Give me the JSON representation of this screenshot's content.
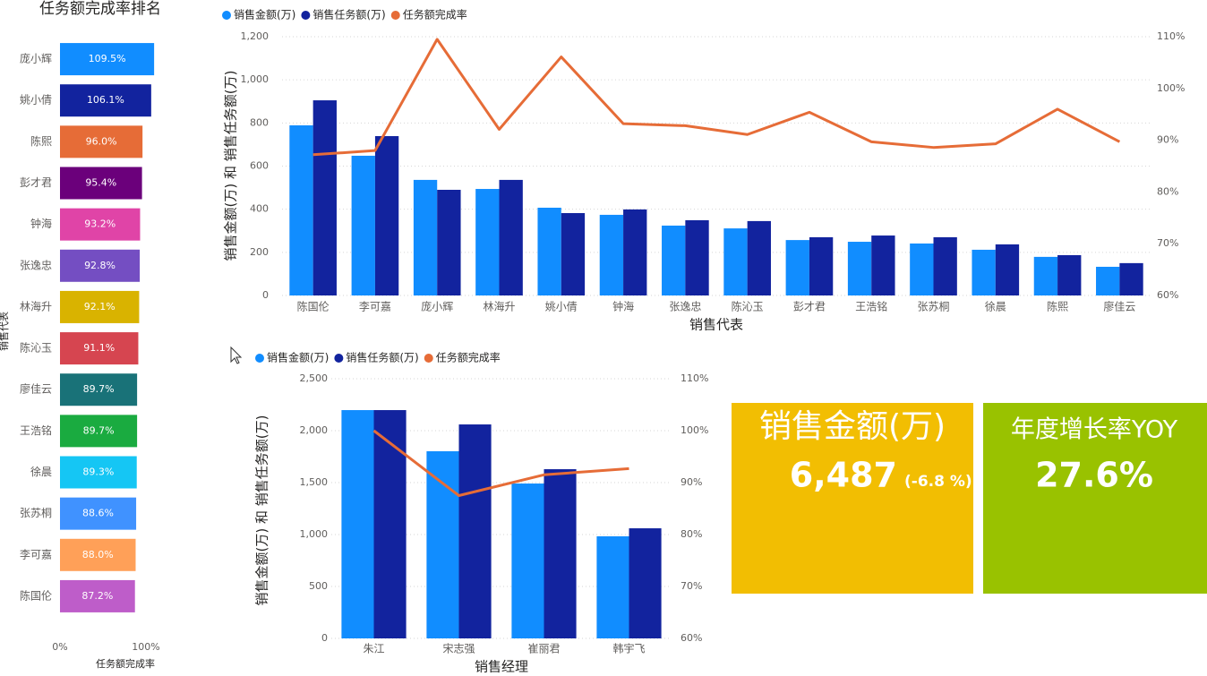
{
  "chart_data": [
    {
      "type": "hbar",
      "title": "任务额完成率排名",
      "categories": [
        "庞小辉",
        "姚小倩",
        "陈熙",
        "彭才君",
        "钟海",
        "张逸忠",
        "林海升",
        "陈沁玉",
        "廖佳云",
        "王浩铭",
        "徐晨",
        "张苏桐",
        "李可嘉",
        "陈国伦"
      ],
      "values": [
        109.5,
        106.1,
        96.0,
        95.4,
        93.2,
        92.8,
        92.1,
        91.1,
        89.7,
        89.7,
        89.3,
        88.6,
        88.0,
        87.2
      ],
      "value_labels": [
        "109.5%",
        "106.1%",
        "96.0%",
        "95.4%",
        "93.2%",
        "92.8%",
        "92.1%",
        "91.1%",
        "89.7%",
        "89.7%",
        "89.3%",
        "88.6%",
        "88.0%",
        "87.2%"
      ],
      "colors": [
        "#118DFF",
        "#12239E",
        "#E66C37",
        "#6B007B",
        "#E044A7",
        "#744EC2",
        "#D9B300",
        "#D64550",
        "#197278",
        "#1AAB40",
        "#15C6F4",
        "#4092FF",
        "#FFA058",
        "#BE5DC9"
      ],
      "xlim": [
        0,
        110
      ],
      "xticks": [
        {
          "value": 0,
          "label": "0%"
        },
        {
          "value": 100,
          "label": "100%"
        }
      ],
      "x_label": "任务额完成率",
      "y_label": "销售代表"
    },
    {
      "type": "combo",
      "categories": [
        "陈国伦",
        "李可嘉",
        "庞小辉",
        "林海升",
        "姚小倩",
        "钟海",
        "张逸忠",
        "陈沁玉",
        "彭才君",
        "王浩铭",
        "张苏桐",
        "徐晨",
        "陈熙",
        "廖佳云"
      ],
      "series": [
        {
          "name": "销售金额(万)",
          "color": "#118DFF",
          "values": [
            789,
            648,
            536,
            494,
            407,
            374,
            324,
            311,
            257,
            249,
            241,
            212,
            179,
            133
          ]
        },
        {
          "name": "销售任务额(万)",
          "color": "#12239E",
          "values": [
            905,
            739,
            490,
            536,
            382,
            399,
            349,
            345,
            270,
            278,
            270,
            237,
            187,
            150
          ]
        },
        {
          "name": "任务额完成率",
          "color": "#E66C37",
          "axis": "y2",
          "values": [
            87.2,
            88.0,
            109.5,
            92.1,
            106.1,
            93.2,
            92.8,
            91.1,
            95.4,
            89.7,
            88.6,
            89.3,
            96.0,
            89.7
          ]
        }
      ],
      "ylim": [
        0,
        1200
      ],
      "yticks": [
        0,
        200,
        400,
        600,
        800,
        {
          "value": 1000,
          "label": "1,000"
        },
        {
          "value": 1200,
          "label": "1,200"
        }
      ],
      "y2lim": [
        60,
        110
      ],
      "y2ticks": [
        {
          "value": 60,
          "label": "60%"
        },
        {
          "value": 70,
          "label": "70%"
        },
        {
          "value": 80,
          "label": "80%"
        },
        {
          "value": 90,
          "label": "90%"
        },
        {
          "value": 100,
          "label": "100%"
        },
        {
          "value": 110,
          "label": "110%"
        }
      ],
      "x_label": "销售代表",
      "y_label": "销售金额(万) 和 销售任务额(万)",
      "grid": true
    },
    {
      "type": "combo",
      "categories": [
        "朱江",
        "宋志强",
        "崔丽君",
        "韩宇飞"
      ],
      "series": [
        {
          "name": "销售金额(万)",
          "color": "#118DFF",
          "values": [
            2198,
            1802,
            1491,
            983
          ]
        },
        {
          "name": "销售任务额(万)",
          "color": "#12239E",
          "values": [
            2198,
            2060,
            1629,
            1060
          ]
        },
        {
          "name": "任务额完成率",
          "color": "#E66C37",
          "axis": "y2",
          "values": [
            100,
            87.5,
            91.5,
            92.7
          ]
        }
      ],
      "ylim": [
        0,
        2500
      ],
      "yticks": [
        0,
        500,
        {
          "value": 1000,
          "label": "1,000"
        },
        {
          "value": 1500,
          "label": "1,500"
        },
        {
          "value": 2000,
          "label": "2,000"
        },
        {
          "value": 2500,
          "label": "2,500"
        }
      ],
      "y2lim": [
        60,
        110
      ],
      "y2ticks": [
        {
          "value": 60,
          "label": "60%"
        },
        {
          "value": 70,
          "label": "70%"
        },
        {
          "value": 80,
          "label": "80%"
        },
        {
          "value": 90,
          "label": "90%"
        },
        {
          "value": 100,
          "label": "100%"
        },
        {
          "value": 110,
          "label": "110%"
        }
      ],
      "x_label": "销售经理",
      "y_label": "销售金额(万) 和 销售任务额(万)",
      "grid": true
    }
  ],
  "cards": [
    {
      "title": "销售金额(万)",
      "value": "6,487",
      "change": "(-6.8 %)"
    },
    {
      "title": "年度增长率YOY",
      "value": "27.6%"
    }
  ]
}
